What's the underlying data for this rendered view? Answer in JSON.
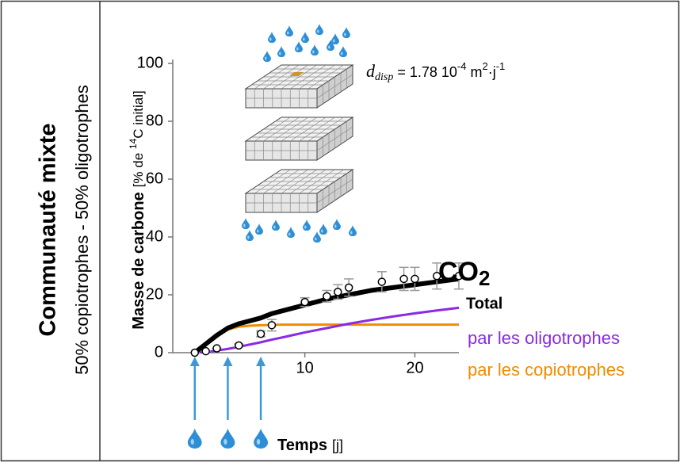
{
  "chart_data": {
    "type": "line",
    "panel_title": "Communauté mixte",
    "panel_subtitle": "50% copiotrophes - 50% oligotrophes",
    "ylabel": "Masse de carbone",
    "ylabel_unit": [
      "[% de ",
      "14",
      "C initial]"
    ],
    "xlabel": "Temps",
    "xlabel_unit": "[j]",
    "series_group_label": [
      "CO",
      "2"
    ],
    "annotation": [
      "d",
      "disp",
      " = 1.78 10",
      "-4",
      " m",
      "2",
      "·j",
      "-1"
    ],
    "xlim": [
      -2,
      24
    ],
    "ylim": [
      0,
      100
    ],
    "xticks": [
      10,
      20
    ],
    "yticks": [
      0,
      20,
      40,
      60,
      80,
      100
    ],
    "x": [
      0,
      1,
      2,
      3,
      4,
      5,
      6,
      7,
      8,
      10,
      12,
      14,
      16,
      18,
      20,
      22,
      24
    ],
    "series": [
      {
        "name": "Total",
        "color": "#000000",
        "width": 6,
        "values": [
          0,
          3,
          6,
          8.5,
          10,
          11,
          12,
          13.5,
          14.5,
          16.5,
          18.5,
          20,
          21.5,
          22.5,
          23.5,
          24.5,
          25.5
        ]
      },
      {
        "name": "par les oligotrophes",
        "color": "#8a2be2",
        "width": 3,
        "values": [
          0,
          0.2,
          0.7,
          1.3,
          2,
          2.8,
          3.6,
          4.5,
          5.3,
          7,
          8.5,
          10,
          11.3,
          12.5,
          13.6,
          14.6,
          15.5
        ]
      },
      {
        "name": "par les copiotrophes",
        "color": "#f08c00",
        "width": 3,
        "values": [
          0,
          3,
          6,
          8,
          9,
          9.3,
          9.5,
          9.6,
          9.7,
          9.7,
          9.7,
          9.7,
          9.7,
          9.7,
          9.7,
          9.7,
          9.7
        ]
      }
    ],
    "observed": {
      "x": [
        0,
        1,
        2,
        4,
        6,
        7,
        10,
        12,
        13,
        14,
        17,
        19,
        20,
        22,
        24
      ],
      "values": [
        0,
        0.5,
        1.5,
        2.5,
        6.5,
        9.5,
        17.5,
        19.5,
        21,
        22.5,
        24.5,
        25.5,
        25.5,
        26.5,
        26.5
      ],
      "errors": [
        0,
        0,
        0,
        0.5,
        1,
        2,
        1.5,
        2,
        2.5,
        3,
        3.5,
        4,
        4,
        4.5,
        4.5
      ]
    },
    "irrigation_days": [
      0,
      3,
      6
    ],
    "irrigation_color": "#3a9ad9"
  }
}
